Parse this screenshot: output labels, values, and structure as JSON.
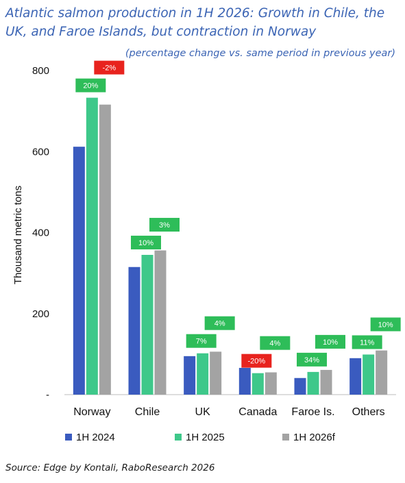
{
  "colors": {
    "title": "#3b64b4",
    "up_badge": "#2ebd59",
    "down_badge": "#e8231e",
    "badge_text": "#ffffff"
  },
  "source": {
    "label": "Source:",
    "text": " Edge by Kontali, RaboResearch 2026"
  },
  "chart_data": {
    "type": "bar",
    "title": "Atlantic salmon production in 1H 2026: Growth in Chile, the UK, and Faroe Islands, but contraction in Norway",
    "subtitle": "(percentage change vs. same period in previous year)",
    "ylabel": "Thousand metric tons",
    "xlabel": "",
    "ylim": [
      0,
      800
    ],
    "yticks": [
      0,
      200,
      400,
      600,
      800
    ],
    "ytick_labels": [
      "-",
      "200",
      "400",
      "600",
      "800"
    ],
    "grid": false,
    "legend_position": "bottom",
    "categories": [
      "Norway",
      "Chile",
      "UK",
      "Canada",
      "Faroe Is.",
      "Others"
    ],
    "series": [
      {
        "name": "1H 2024",
        "color": "#3a5bbf",
        "values": [
          612,
          315,
          95,
          66,
          41,
          90
        ],
        "labels": [
          "",
          "",
          "",
          "",
          "",
          ""
        ]
      },
      {
        "name": "1H 2025",
        "color": "#3ec88a",
        "values": [
          733,
          345,
          102,
          53,
          56,
          99
        ],
        "labels": [
          "20%",
          "10%",
          "7%",
          "-20%",
          "34%",
          "11%"
        ]
      },
      {
        "name": "1H 2026f",
        "color": "#a3a3a3",
        "values": [
          716,
          356,
          106,
          55,
          61,
          109
        ],
        "labels": [
          "-2%",
          "3%",
          "4%",
          "4%",
          "10%",
          "10%"
        ]
      }
    ]
  }
}
